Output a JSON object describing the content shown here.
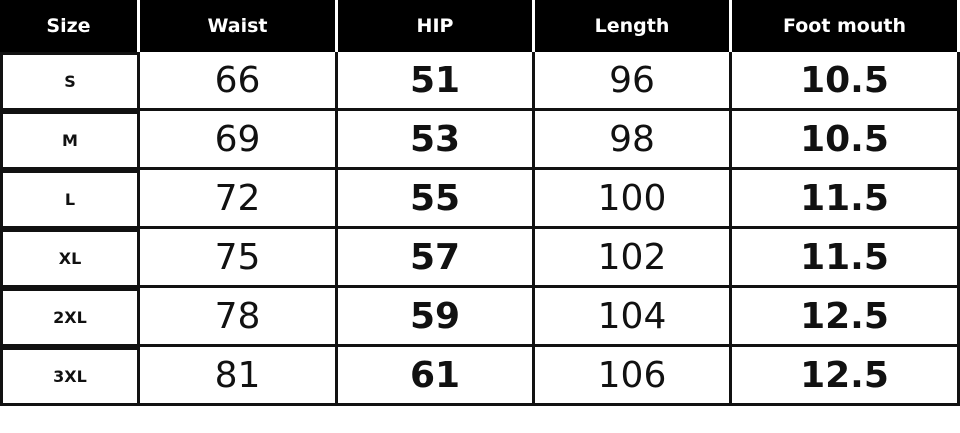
{
  "table": {
    "header": [
      "Size",
      "Waist",
      "HIP",
      "Length",
      "Foot mouth"
    ],
    "rows": [
      [
        "S",
        66,
        51,
        96,
        10.5
      ],
      [
        "M",
        69,
        53,
        98,
        10.5
      ],
      [
        "L",
        72,
        55,
        100,
        11.5
      ],
      [
        "XL",
        75,
        57,
        102,
        11.5
      ],
      [
        "2XL",
        78,
        59,
        104,
        12.5
      ],
      [
        "3XL",
        81,
        61,
        106,
        12.5
      ]
    ]
  }
}
